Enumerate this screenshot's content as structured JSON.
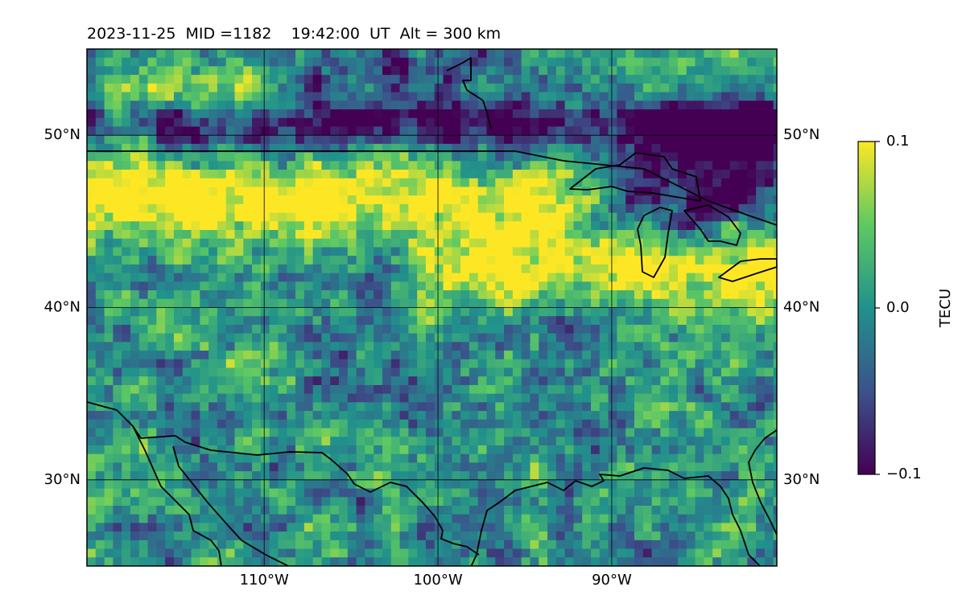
{
  "title": {
    "text": "2023-11-25  MID =1182    19:42:00  UT  Alt = 300 km"
  },
  "map": {
    "lon_range": [
      -120.2,
      -80.5
    ],
    "lat_range": [
      25,
      55
    ],
    "lon_ticks": [
      {
        "value": -110,
        "label": "110°W"
      },
      {
        "value": -100,
        "label": "100°W"
      },
      {
        "value": -90,
        "label": "90°W"
      }
    ],
    "lat_ticks": [
      {
        "value": 50,
        "label": "50°N"
      },
      {
        "value": 40,
        "label": "40°N"
      },
      {
        "value": 30,
        "label": "30°N"
      }
    ],
    "grid": true,
    "field": "differential TEC",
    "field_features": {
      "positive_band_lat": [
        44,
        48
      ],
      "positive_band_east_lat": [
        40,
        44
      ],
      "negative_band_north_lat": [
        49,
        52
      ],
      "negative_region_northeast": "Great Lakes / Ontario"
    }
  },
  "colorbar": {
    "label": "TECU",
    "colormap": "viridis",
    "colors": [
      "#440154",
      "#3b528b",
      "#21918c",
      "#5ec962",
      "#fde725"
    ],
    "vmin": -0.1,
    "vmax": 0.1,
    "ticks": [
      {
        "value": 0.1,
        "label": "0.1"
      },
      {
        "value": 0.0,
        "label": "0.0"
      },
      {
        "value": -0.1,
        "label": "−0.1"
      }
    ]
  }
}
